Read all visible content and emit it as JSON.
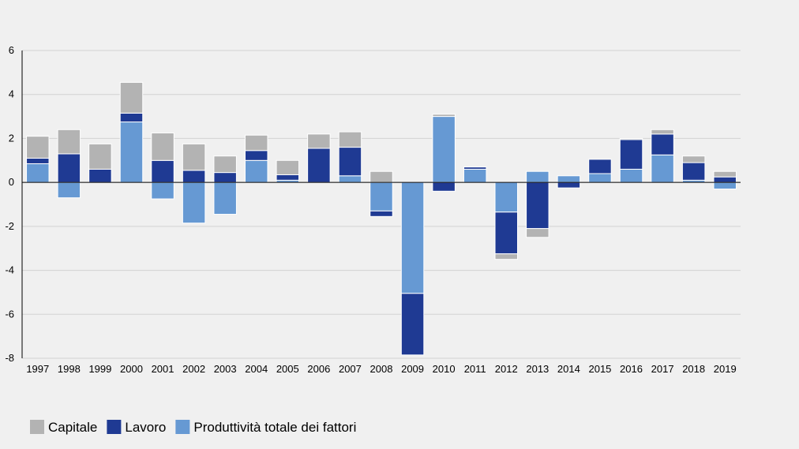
{
  "chart_data": {
    "type": "bar",
    "stacked": true,
    "title": "",
    "xlabel": "",
    "ylabel": "",
    "ylim": [
      -8,
      6
    ],
    "yticks": [
      -8,
      -6,
      -4,
      -2,
      0,
      2,
      4,
      6
    ],
    "grid": true,
    "legend_position": "bottom-left",
    "categories": [
      "1997",
      "1998",
      "1999",
      "2000",
      "2001",
      "2002",
      "2003",
      "2004",
      "2005",
      "2006",
      "2007",
      "2008",
      "2009",
      "2010",
      "2011",
      "2012",
      "2013",
      "2014",
      "2015",
      "2016",
      "2017",
      "2018",
      "2019"
    ],
    "series": [
      {
        "name": "Produttività totale dei fattori",
        "color": "#6699d3",
        "values": [
          0.85,
          -0.7,
          0.0,
          2.75,
          -0.75,
          -1.85,
          -1.45,
          1.0,
          0.1,
          0.0,
          0.3,
          -1.3,
          -5.05,
          3.0,
          0.6,
          -1.35,
          0.5,
          0.3,
          0.4,
          0.6,
          1.25,
          0.1,
          -0.3
        ]
      },
      {
        "name": "Lavoro",
        "color": "#1f3a93",
        "values": [
          0.25,
          1.3,
          0.6,
          0.4,
          1.0,
          0.55,
          0.45,
          0.45,
          0.25,
          1.55,
          1.3,
          -0.25,
          -2.8,
          -0.4,
          0.1,
          -1.9,
          -2.1,
          -0.25,
          0.65,
          1.35,
          0.95,
          0.8,
          0.25
        ]
      },
      {
        "name": "Capitale",
        "color": "#b3b3b3",
        "values": [
          1.0,
          1.1,
          1.15,
          1.4,
          1.25,
          1.2,
          0.75,
          0.7,
          0.65,
          0.65,
          0.7,
          0.5,
          0.0,
          0.1,
          0.0,
          -0.25,
          -0.4,
          0.0,
          0.0,
          0.05,
          0.2,
          0.3,
          0.25
        ]
      }
    ],
    "legend": [
      {
        "label": "Capitale",
        "color": "#b3b3b3"
      },
      {
        "label": "Lavoro",
        "color": "#1f3a93"
      },
      {
        "label": "Produttività totale dei fattori",
        "color": "#6699d3"
      }
    ]
  }
}
